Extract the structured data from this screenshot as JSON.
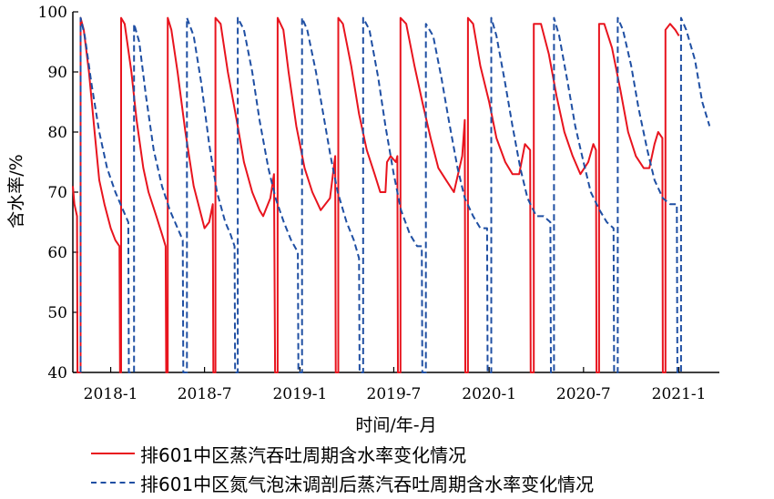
{
  "chart_data": {
    "type": "line",
    "xlabel": "时间/年-月",
    "ylabel": "含水率/%",
    "ylim": [
      40,
      100
    ],
    "yticks": [
      40,
      50,
      60,
      70,
      80,
      90,
      100
    ],
    "xlim": [
      "2017-10-20",
      "2021-03-20"
    ],
    "xticks": [
      {
        "date": "2018-01-01",
        "label": "2018-1"
      },
      {
        "date": "2018-07-01",
        "label": "2018-7"
      },
      {
        "date": "2019-01-01",
        "label": "2019-1"
      },
      {
        "date": "2019-07-01",
        "label": "2019-7"
      },
      {
        "date": "2020-01-01",
        "label": "2020-1"
      },
      {
        "date": "2020-07-01",
        "label": "2020-7"
      },
      {
        "date": "2021-01-01",
        "label": "2021-1"
      }
    ],
    "grid": false,
    "legend_position": "bottom",
    "series": [
      {
        "name": "排601中区蒸汽吞吐周期含水率变化情况",
        "style": "solid",
        "color": "#e8141e",
        "points": [
          [
            "2017-10-20",
            71
          ],
          [
            "2017-10-23",
            68
          ],
          [
            "2017-10-28",
            66
          ],
          [
            "2017-10-29",
            40
          ],
          [
            "2017-11-04",
            40
          ],
          [
            "2017-11-04",
            99
          ],
          [
            "2017-11-10",
            97
          ],
          [
            "2017-11-20",
            90
          ],
          [
            "2017-12-01",
            80
          ],
          [
            "2017-12-10",
            72
          ],
          [
            "2017-12-20",
            68
          ],
          [
            "2018-01-01",
            64
          ],
          [
            "2018-01-10",
            62
          ],
          [
            "2018-01-18",
            61
          ],
          [
            "2018-01-19",
            40
          ],
          [
            "2018-01-21",
            40
          ],
          [
            "2018-01-21",
            99
          ],
          [
            "2018-01-28",
            98
          ],
          [
            "2018-02-10",
            90
          ],
          [
            "2018-02-20",
            82
          ],
          [
            "2018-03-05",
            74
          ],
          [
            "2018-03-15",
            70
          ],
          [
            "2018-03-30",
            66
          ],
          [
            "2018-04-10",
            63
          ],
          [
            "2018-04-17",
            61
          ],
          [
            "2018-04-18",
            40
          ],
          [
            "2018-04-21",
            40
          ],
          [
            "2018-04-21",
            99
          ],
          [
            "2018-04-28",
            97
          ],
          [
            "2018-05-10",
            90
          ],
          [
            "2018-05-25",
            80
          ],
          [
            "2018-06-10",
            71
          ],
          [
            "2018-06-25",
            66
          ],
          [
            "2018-07-01",
            64
          ],
          [
            "2018-07-10",
            65
          ],
          [
            "2018-07-17",
            68
          ],
          [
            "2018-07-18",
            40
          ],
          [
            "2018-07-22",
            40
          ],
          [
            "2018-07-22",
            99
          ],
          [
            "2018-08-01",
            98
          ],
          [
            "2018-08-15",
            90
          ],
          [
            "2018-09-01",
            82
          ],
          [
            "2018-09-15",
            75
          ],
          [
            "2018-10-01",
            70
          ],
          [
            "2018-10-15",
            67
          ],
          [
            "2018-10-22",
            66
          ],
          [
            "2018-11-05",
            69
          ],
          [
            "2018-11-12",
            73
          ],
          [
            "2018-11-14",
            40
          ],
          [
            "2018-11-19",
            40
          ],
          [
            "2018-11-19",
            99
          ],
          [
            "2018-11-30",
            97
          ],
          [
            "2018-12-10",
            90
          ],
          [
            "2018-12-25",
            81
          ],
          [
            "2019-01-10",
            74
          ],
          [
            "2019-01-25",
            70
          ],
          [
            "2019-02-10",
            67
          ],
          [
            "2019-02-28",
            69
          ],
          [
            "2019-03-10",
            76
          ],
          [
            "2019-03-11",
            40
          ],
          [
            "2019-03-16",
            40
          ],
          [
            "2019-03-16",
            99
          ],
          [
            "2019-03-25",
            98
          ],
          [
            "2019-04-10",
            91
          ],
          [
            "2019-04-25",
            83
          ],
          [
            "2019-05-10",
            77
          ],
          [
            "2019-05-25",
            73
          ],
          [
            "2019-06-05",
            70
          ],
          [
            "2019-06-15",
            70
          ],
          [
            "2019-06-18",
            75
          ],
          [
            "2019-06-25",
            76
          ],
          [
            "2019-07-05",
            75
          ],
          [
            "2019-07-08",
            76
          ],
          [
            "2019-07-09",
            40
          ],
          [
            "2019-07-14",
            40
          ],
          [
            "2019-07-14",
            99
          ],
          [
            "2019-07-25",
            98
          ],
          [
            "2019-08-10",
            91
          ],
          [
            "2019-08-25",
            85
          ],
          [
            "2019-09-10",
            79
          ],
          [
            "2019-09-25",
            74
          ],
          [
            "2019-10-10",
            72
          ],
          [
            "2019-10-25",
            70
          ],
          [
            "2019-11-10",
            76
          ],
          [
            "2019-11-15",
            82
          ],
          [
            "2019-11-16",
            40
          ],
          [
            "2019-11-21",
            40
          ],
          [
            "2019-11-21",
            99
          ],
          [
            "2019-12-01",
            98
          ],
          [
            "2019-12-15",
            91
          ],
          [
            "2020-01-01",
            85
          ],
          [
            "2020-01-15",
            79
          ],
          [
            "2020-02-01",
            75
          ],
          [
            "2020-02-15",
            73
          ],
          [
            "2020-02-28",
            73
          ],
          [
            "2020-03-10",
            78
          ],
          [
            "2020-03-20",
            77
          ],
          [
            "2020-03-21",
            40
          ],
          [
            "2020-03-27",
            40
          ],
          [
            "2020-03-27",
            98
          ],
          [
            "2020-04-10",
            98
          ],
          [
            "2020-04-25",
            93
          ],
          [
            "2020-05-10",
            86
          ],
          [
            "2020-05-25",
            80
          ],
          [
            "2020-06-10",
            76
          ],
          [
            "2020-06-25",
            73
          ],
          [
            "2020-07-10",
            75
          ],
          [
            "2020-07-20",
            78
          ],
          [
            "2020-07-25",
            77
          ],
          [
            "2020-07-26",
            40
          ],
          [
            "2020-07-31",
            40
          ],
          [
            "2020-07-31",
            98
          ],
          [
            "2020-08-10",
            98
          ],
          [
            "2020-08-25",
            94
          ],
          [
            "2020-09-10",
            87
          ],
          [
            "2020-09-25",
            80
          ],
          [
            "2020-10-10",
            76
          ],
          [
            "2020-10-25",
            74
          ],
          [
            "2020-11-05",
            74
          ],
          [
            "2020-11-15",
            78
          ],
          [
            "2020-11-22",
            80
          ],
          [
            "2020-11-30",
            79
          ],
          [
            "2020-12-01",
            40
          ],
          [
            "2020-12-06",
            40
          ],
          [
            "2020-12-06",
            97
          ],
          [
            "2020-12-15",
            98
          ],
          [
            "2020-12-25",
            97
          ],
          [
            "2021-01-01",
            96
          ]
        ]
      },
      {
        "name": "排601中区氮气泡沫调剖后蒸汽吞吐周期含水率变化情况",
        "style": "dashed",
        "color": "#1f4fa3",
        "points": [
          [
            "2017-11-04",
            40
          ],
          [
            "2017-11-04",
            99
          ],
          [
            "2017-11-12",
            96
          ],
          [
            "2017-11-25",
            88
          ],
          [
            "2017-12-10",
            80
          ],
          [
            "2017-12-25",
            74
          ],
          [
            "2018-01-10",
            70
          ],
          [
            "2018-01-25",
            67
          ],
          [
            "2018-02-04",
            65
          ],
          [
            "2018-02-05",
            40
          ],
          [
            "2018-02-15",
            40
          ],
          [
            "2018-02-15",
            98
          ],
          [
            "2018-02-25",
            95
          ],
          [
            "2018-03-10",
            86
          ],
          [
            "2018-03-25",
            77
          ],
          [
            "2018-04-10",
            71
          ],
          [
            "2018-04-25",
            67
          ],
          [
            "2018-05-05",
            65
          ],
          [
            "2018-05-15",
            63
          ],
          [
            "2018-05-20",
            62
          ],
          [
            "2018-05-21",
            40
          ],
          [
            "2018-05-28",
            40
          ],
          [
            "2018-05-28",
            99
          ],
          [
            "2018-06-10",
            96
          ],
          [
            "2018-06-25",
            88
          ],
          [
            "2018-07-10",
            78
          ],
          [
            "2018-07-25",
            70
          ],
          [
            "2018-08-10",
            65
          ],
          [
            "2018-08-20",
            63
          ],
          [
            "2018-08-28",
            61
          ],
          [
            "2018-08-29",
            40
          ],
          [
            "2018-09-03",
            40
          ],
          [
            "2018-09-03",
            99
          ],
          [
            "2018-09-15",
            97
          ],
          [
            "2018-10-01",
            90
          ],
          [
            "2018-10-15",
            82
          ],
          [
            "2018-11-01",
            74
          ],
          [
            "2018-11-15",
            69
          ],
          [
            "2018-12-01",
            65
          ],
          [
            "2018-12-15",
            62
          ],
          [
            "2018-12-28",
            60
          ],
          [
            "2018-12-29",
            40
          ],
          [
            "2019-01-05",
            40
          ],
          [
            "2019-01-05",
            99
          ],
          [
            "2019-01-15",
            97
          ],
          [
            "2019-02-01",
            90
          ],
          [
            "2019-02-15",
            83
          ],
          [
            "2019-03-01",
            76
          ],
          [
            "2019-03-15",
            70
          ],
          [
            "2019-04-01",
            65
          ],
          [
            "2019-04-15",
            62
          ],
          [
            "2019-04-25",
            59
          ],
          [
            "2019-04-26",
            40
          ],
          [
            "2019-05-03",
            40
          ],
          [
            "2019-05-03",
            99
          ],
          [
            "2019-05-15",
            97
          ],
          [
            "2019-06-01",
            89
          ],
          [
            "2019-06-15",
            81
          ],
          [
            "2019-07-01",
            73
          ],
          [
            "2019-07-15",
            67
          ],
          [
            "2019-08-01",
            63
          ],
          [
            "2019-08-15",
            61
          ],
          [
            "2019-08-24",
            61
          ],
          [
            "2019-08-25",
            40
          ],
          [
            "2019-09-01",
            40
          ],
          [
            "2019-09-01",
            98
          ],
          [
            "2019-09-15",
            96
          ],
          [
            "2019-10-01",
            89
          ],
          [
            "2019-10-15",
            82
          ],
          [
            "2019-11-01",
            74
          ],
          [
            "2019-11-15",
            69
          ],
          [
            "2019-12-01",
            66
          ],
          [
            "2019-12-15",
            64
          ],
          [
            "2019-12-28",
            64
          ],
          [
            "2019-12-29",
            40
          ],
          [
            "2020-01-05",
            40
          ],
          [
            "2020-01-05",
            99
          ],
          [
            "2020-01-15",
            96
          ],
          [
            "2020-02-01",
            88
          ],
          [
            "2020-02-15",
            81
          ],
          [
            "2020-03-01",
            74
          ],
          [
            "2020-03-15",
            69
          ],
          [
            "2020-04-01",
            66
          ],
          [
            "2020-04-15",
            66
          ],
          [
            "2020-04-28",
            65
          ],
          [
            "2020-04-29",
            40
          ],
          [
            "2020-05-05",
            40
          ],
          [
            "2020-05-05",
            99
          ],
          [
            "2020-05-15",
            96
          ],
          [
            "2020-06-01",
            88
          ],
          [
            "2020-06-15",
            81
          ],
          [
            "2020-07-01",
            75
          ],
          [
            "2020-07-15",
            70
          ],
          [
            "2020-08-01",
            67
          ],
          [
            "2020-08-15",
            65
          ],
          [
            "2020-08-28",
            64
          ],
          [
            "2020-08-29",
            40
          ],
          [
            "2020-09-05",
            40
          ],
          [
            "2020-09-05",
            99
          ],
          [
            "2020-09-15",
            97
          ],
          [
            "2020-10-01",
            91
          ],
          [
            "2020-10-15",
            84
          ],
          [
            "2020-11-01",
            77
          ],
          [
            "2020-11-15",
            72
          ],
          [
            "2020-12-01",
            69
          ],
          [
            "2020-12-15",
            68
          ],
          [
            "2020-12-28",
            68
          ],
          [
            "2020-12-29",
            40
          ],
          [
            "2021-01-05",
            40
          ],
          [
            "2021-01-05",
            99
          ],
          [
            "2021-01-15",
            97
          ],
          [
            "2021-02-01",
            92
          ],
          [
            "2021-02-15",
            85
          ],
          [
            "2021-03-01",
            81
          ]
        ]
      }
    ]
  }
}
